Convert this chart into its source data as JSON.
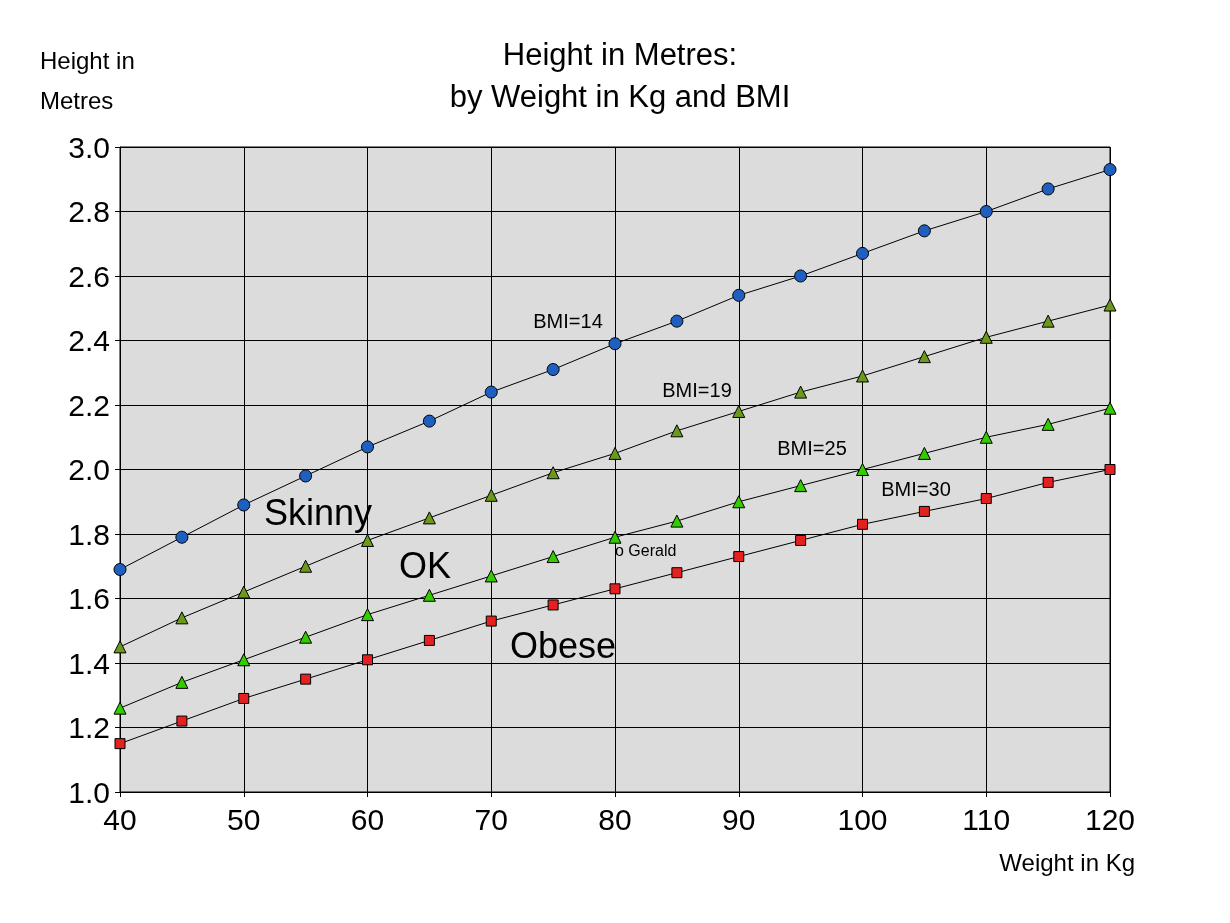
{
  "chart_data": {
    "type": "line",
    "title": "Height in Metres:\nby Weight in Kg and BMI",
    "xlabel": "Weight in Kg",
    "ylabel": "Height in Metres",
    "x": [
      40,
      45,
      50,
      55,
      60,
      65,
      70,
      75,
      80,
      85,
      90,
      95,
      100,
      105,
      110,
      115,
      120
    ],
    "series": [
      {
        "name": "BMI=14",
        "color": "#1f5fbf",
        "marker": "circle",
        "values": [
          1.69,
          1.79,
          1.89,
          1.98,
          2.07,
          2.15,
          2.24,
          2.31,
          2.39,
          2.46,
          2.54,
          2.6,
          2.67,
          2.74,
          2.8,
          2.87,
          2.93
        ]
      },
      {
        "name": "BMI=19",
        "color": "#6b9a1a",
        "marker": "triangle",
        "values": [
          1.45,
          1.54,
          1.62,
          1.7,
          1.78,
          1.85,
          1.92,
          1.99,
          2.05,
          2.12,
          2.18,
          2.24,
          2.29,
          2.35,
          2.41,
          2.46,
          2.51
        ]
      },
      {
        "name": "BMI=25",
        "color": "#33cc00",
        "marker": "triangle",
        "values": [
          1.26,
          1.34,
          1.41,
          1.48,
          1.55,
          1.61,
          1.67,
          1.73,
          1.79,
          1.84,
          1.9,
          1.95,
          2.0,
          2.05,
          2.1,
          2.14,
          2.19
        ]
      },
      {
        "name": "BMI=30",
        "color": "#e52020",
        "marker": "square",
        "values": [
          1.15,
          1.22,
          1.29,
          1.35,
          1.41,
          1.47,
          1.53,
          1.58,
          1.63,
          1.68,
          1.73,
          1.78,
          1.83,
          1.87,
          1.91,
          1.96,
          2.0
        ]
      }
    ],
    "xlim": [
      40,
      120
    ],
    "xticks": [
      40,
      50,
      60,
      70,
      80,
      90,
      100,
      110,
      120
    ],
    "ylim": [
      1.0,
      3.0
    ],
    "yticks": [
      {
        "value": 1,
        "label": "1.0"
      },
      1.2,
      1.4,
      1.6,
      1.8,
      {
        "value": 2,
        "label": "2.0"
      },
      2.2,
      2.4,
      2.6,
      2.8,
      {
        "value": 3,
        "label": "3.0"
      }
    ],
    "grid": true,
    "line_style": "solid",
    "annotations": [
      "Skinny",
      "OK",
      "Obese",
      "o Gerald"
    ]
  }
}
